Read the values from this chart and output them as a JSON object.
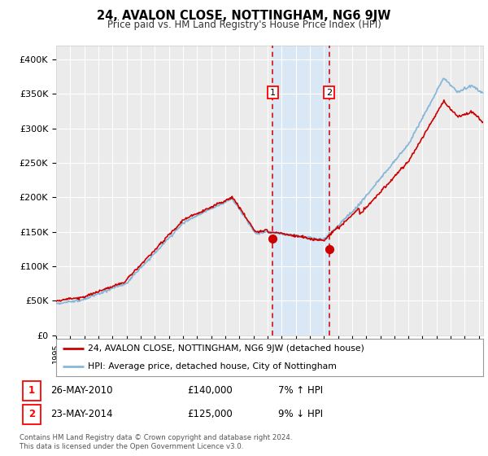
{
  "title": "24, AVALON CLOSE, NOTTINGHAM, NG6 9JW",
  "subtitle": "Price paid vs. HM Land Registry's House Price Index (HPI)",
  "ylim": [
    0,
    420000
  ],
  "yticks": [
    0,
    50000,
    100000,
    150000,
    200000,
    250000,
    300000,
    350000,
    400000
  ],
  "ytick_labels": [
    "£0",
    "£50K",
    "£100K",
    "£150K",
    "£200K",
    "£250K",
    "£300K",
    "£350K",
    "£400K"
  ],
  "hpi_color": "#87b8d9",
  "price_color": "#cc0000",
  "marker1_date": 2010.38,
  "marker2_date": 2014.38,
  "marker1_price": 140000,
  "marker2_price": 125000,
  "legend_label1": "24, AVALON CLOSE, NOTTINGHAM, NG6 9JW (detached house)",
  "legend_label2": "HPI: Average price, detached house, City of Nottingham",
  "footer": "Contains HM Land Registry data © Crown copyright and database right 2024.\nThis data is licensed under the Open Government Licence v3.0.",
  "bg_color": "#ffffff",
  "plot_bg_color": "#ebebeb",
  "grid_color": "#ffffff",
  "shaded_region_color": "#dae8f5",
  "shaded_x1": 2010.38,
  "shaded_x2": 2014.38,
  "xlim_left": 1995,
  "xlim_right": 2025.3
}
